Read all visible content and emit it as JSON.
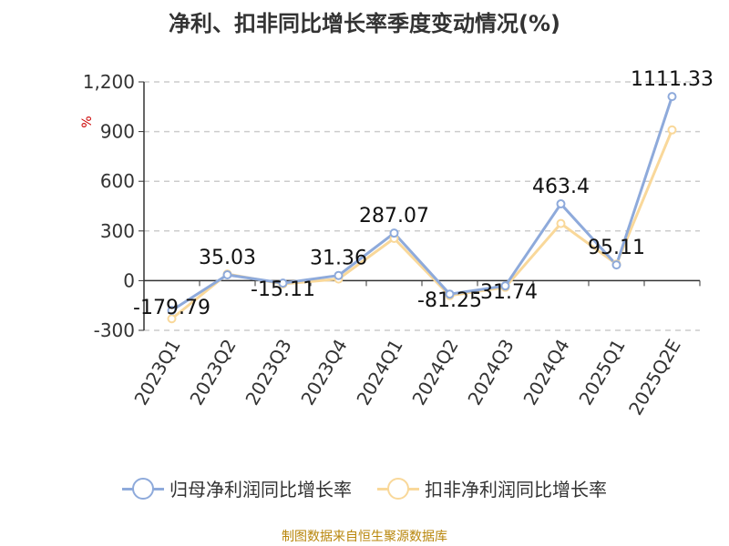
{
  "chart_data": {
    "type": "line",
    "title": "净利、扣非同比增长率季度变动情况(%)",
    "ylabel": "%",
    "ylim": [
      -300,
      1200
    ],
    "yticks": [
      -300,
      0,
      300,
      600,
      900,
      1200
    ],
    "ytick_labels": [
      "-300",
      "0",
      "300",
      "600",
      "900",
      "1,200"
    ],
    "categories": [
      "2023Q1",
      "2023Q2",
      "2023Q3",
      "2023Q4",
      "2024Q1",
      "2024Q2",
      "2024Q3",
      "2024Q4",
      "2025Q1",
      "2025Q2E"
    ],
    "grid": true,
    "legend_position": "bottom",
    "series": [
      {
        "name": "归母净利润同比增长率",
        "color": "#8eaadb",
        "values": [
          -179.79,
          35.03,
          -15.11,
          31.36,
          287.07,
          -81.25,
          -31.74,
          463.4,
          95.11,
          1111.33
        ],
        "labels": [
          "-179.79",
          "35.03",
          "-15.11",
          "31.36",
          "287.07",
          "-81.25",
          "-31.74",
          "463.4",
          "95.11",
          "1111.33"
        ]
      },
      {
        "name": "扣非净利润同比增长率",
        "color": "#f9d89a",
        "values": [
          -230,
          40,
          -20,
          10,
          255,
          -90,
          -40,
          345,
          100,
          910
        ]
      }
    ]
  },
  "footer": "制图数据来自恒生聚源数据库"
}
